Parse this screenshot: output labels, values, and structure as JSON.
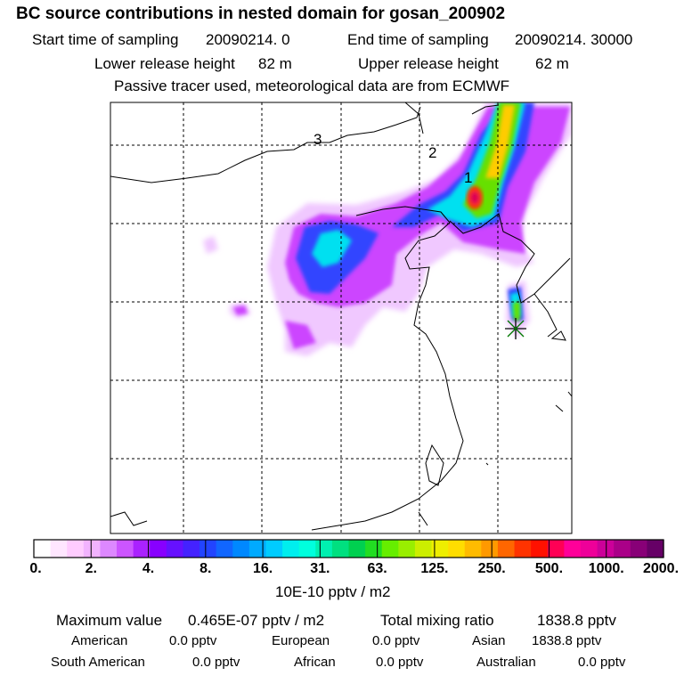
{
  "title": "BC  source contributions in nested domain for gosan_200902",
  "sampling": {
    "start_label": "Start time of sampling",
    "start_value": "20090214.     0",
    "end_label": "End time of sampling",
    "end_value": "20090214. 30000"
  },
  "release": {
    "lower_label": "Lower release height",
    "lower_value": "82 m",
    "upper_label": "Upper release height",
    "upper_value": "62 m"
  },
  "note": "Passive tracer used, meteorological data are from ECMWF",
  "map": {
    "point_labels": [
      "1",
      "2",
      "3"
    ],
    "receptor_marker": "asterisk-icon"
  },
  "colorbar": {
    "ticks": [
      "0.",
      "2.",
      "4.",
      "8.",
      "16.",
      "31.",
      "63.",
      "125.",
      "250.",
      "500.",
      "1000.",
      "2000."
    ],
    "colors": [
      "#ffffff",
      "#ffe6ff",
      "#ffccff",
      "#f2b3ff",
      "#dd88ff",
      "#cc55ff",
      "#aa22ff",
      "#8800ff",
      "#6611ff",
      "#4422ff",
      "#2244ff",
      "#1166ff",
      "#0088ff",
      "#00aaff",
      "#00ccff",
      "#00eeee",
      "#00ffdd",
      "#00f0b0",
      "#00e080",
      "#00d050",
      "#22dd22",
      "#66ee00",
      "#99ee00",
      "#ccee00",
      "#eeee00",
      "#ffdd00",
      "#ffbb00",
      "#ff9900",
      "#ff6600",
      "#ff3300",
      "#ff1100",
      "#ff0055",
      "#ff0099",
      "#ee0099",
      "#cc0099",
      "#aa0088",
      "#880077",
      "#660066"
    ],
    "units": "10E-10 pptv / m2"
  },
  "summary": {
    "max_label": "Maximum value",
    "max_value": "0.465E-07 pptv / m2",
    "total_label": "Total mixing ratio",
    "total_value": "1838.8 pptv"
  },
  "regions": [
    {
      "name": "American",
      "value": "0.0 pptv"
    },
    {
      "name": "European",
      "value": "0.0 pptv"
    },
    {
      "name": "Asian",
      "value": "1838.8 pptv"
    },
    {
      "name": "South American",
      "value": "0.0 pptv"
    },
    {
      "name": "African",
      "value": "0.0 pptv"
    },
    {
      "name": "Australian",
      "value": "0.0 pptv"
    }
  ]
}
